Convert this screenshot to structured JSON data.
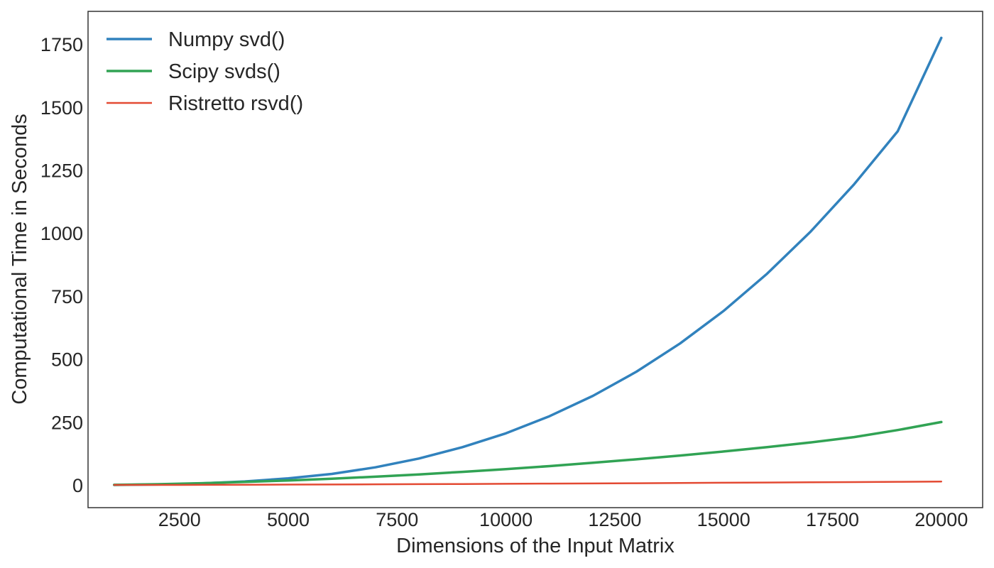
{
  "chart_data": {
    "type": "line",
    "title": "",
    "xlabel": "Dimensions of the Input Matrix",
    "ylabel": "Computational Time in Seconds",
    "xlim": [
      400,
      20950
    ],
    "ylim": [
      -90,
      1880
    ],
    "xticks": [
      2500,
      5000,
      7500,
      10000,
      12500,
      15000,
      17500,
      20000
    ],
    "yticks": [
      0,
      250,
      500,
      750,
      1000,
      1250,
      1500,
      1750
    ],
    "grid": false,
    "legend_position": "top-left",
    "x": [
      1000,
      2000,
      3000,
      4000,
      5000,
      6000,
      7000,
      8000,
      9000,
      10000,
      11000,
      12000,
      13000,
      14000,
      15000,
      16000,
      17000,
      18000,
      19000,
      20000
    ],
    "series": [
      {
        "name": "Numpy svd()",
        "color": "#3182bd",
        "values": [
          0.2,
          1.8,
          6,
          14,
          26,
          44,
          70,
          105,
          150,
          205,
          273,
          354,
          450,
          562,
          691,
          839,
          1006,
          1194,
          1404,
          1775
        ]
      },
      {
        "name": "Scipy svds()",
        "color": "#31a354",
        "values": [
          0.5,
          3,
          7,
          12,
          18,
          25,
          33,
          42,
          52,
          63,
          75,
          88,
          102,
          117,
          133,
          150,
          169,
          190,
          218,
          250
        ]
      },
      {
        "name": "Ristretto rsvd()",
        "color": "#e34a33",
        "values": [
          0.1,
          0.3,
          0.6,
          1,
          1.5,
          2,
          2.6,
          3.2,
          3.9,
          4.6,
          5.4,
          6.2,
          7,
          7.9,
          8.8,
          9.7,
          10.6,
          11.5,
          12.5,
          13.5
        ]
      }
    ]
  }
}
